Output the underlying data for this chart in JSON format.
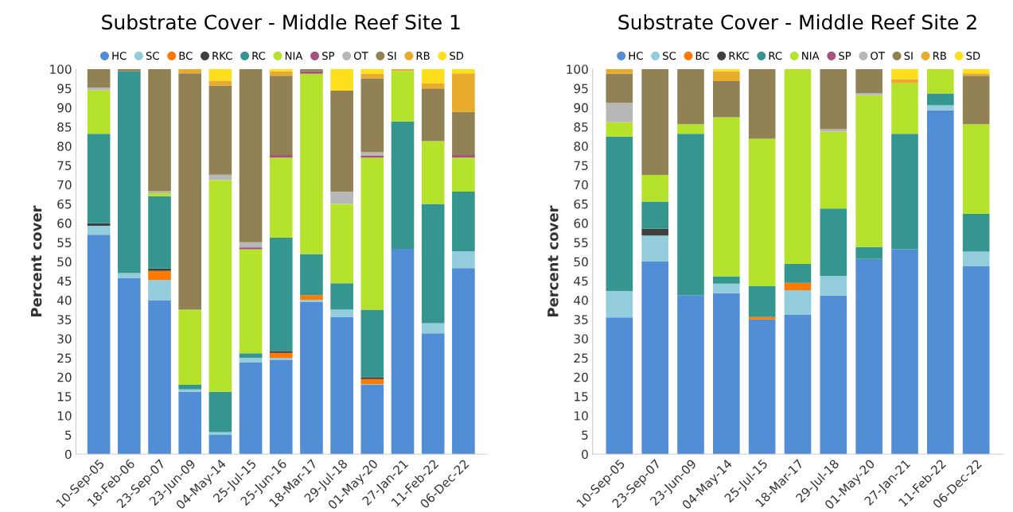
{
  "chart_data": [
    {
      "type": "bar",
      "stacked": true,
      "title": "Substrate Cover - Middle Reef Site 1",
      "ylabel": "Percent cover",
      "legend": "top",
      "grid": false,
      "ylim": [
        0,
        100
      ],
      "yticks": [
        0,
        5,
        10,
        15,
        20,
        25,
        30,
        35,
        40,
        45,
        50,
        55,
        60,
        65,
        70,
        75,
        80,
        85,
        90,
        95,
        100
      ],
      "categories": [
        "10-Sep-05",
        "18-Feb-06",
        "23-Sep-07",
        "23-Jun-09",
        "04-May-14",
        "25-Jul-15",
        "25-Jun-16",
        "18-Mar-17",
        "29-Jul-18",
        "01-May-20",
        "27-Jan-21",
        "11-Feb-22",
        "06-Dec-22"
      ],
      "series": [
        {
          "name": "HC",
          "color": "#528ed6",
          "values": [
            57,
            45.7,
            40,
            16.2,
            5,
            23.8,
            24.5,
            39.5,
            35.6,
            18,
            53.3,
            31.4,
            48.3
          ]
        },
        {
          "name": "SC",
          "color": "#93cddc",
          "values": [
            2.3,
            1.3,
            5.2,
            0.6,
            0.7,
            1.2,
            0.5,
            0.6,
            2,
            0.2,
            null,
            2.6,
            4.4
          ]
        },
        {
          "name": "BC",
          "color": "#ff7a00",
          "values": [
            null,
            null,
            2.4,
            null,
            null,
            null,
            1.3,
            1.2,
            null,
            1.3,
            null,
            null,
            null
          ]
        },
        {
          "name": "RKC",
          "color": "#404040",
          "values": [
            0.7,
            null,
            0.6,
            null,
            null,
            null,
            0.5,
            null,
            null,
            0.5,
            null,
            null,
            null
          ]
        },
        {
          "name": "RC",
          "color": "#359690",
          "values": [
            23.2,
            52.4,
            18.8,
            1.2,
            10.5,
            1.2,
            29.4,
            10.7,
            6.8,
            17.5,
            33.1,
            31,
            15.5
          ]
        },
        {
          "name": "NIA",
          "color": "#b5e32c",
          "values": [
            11.3,
            null,
            0.8,
            19.5,
            55,
            27,
            20.8,
            46.8,
            20.6,
            39.5,
            13.1,
            16.3,
            8.8
          ]
        },
        {
          "name": "SP",
          "color": "#a6527c",
          "values": [
            null,
            null,
            null,
            null,
            null,
            0.5,
            0.7,
            0.6,
            null,
            0.6,
            null,
            null,
            0.7
          ]
        },
        {
          "name": "OT",
          "color": "#b7b7b7",
          "values": [
            0.7,
            null,
            0.5,
            null,
            1.4,
            1.3,
            null,
            null,
            3.2,
            0.8,
            null,
            null,
            null
          ]
        },
        {
          "name": "SI",
          "color": "#918155",
          "values": [
            4.8,
            0.6,
            31.7,
            61.4,
            23.1,
            45,
            20.6,
            0.6,
            26.2,
            19.2,
            null,
            13.7,
            11.2
          ]
        },
        {
          "name": "RB",
          "color": "#e8ab2c",
          "values": [
            null,
            null,
            null,
            1.1,
            1.3,
            null,
            1.1,
            null,
            null,
            1.2,
            0.5,
            1.3,
            10
          ]
        },
        {
          "name": "SD",
          "color": "#ffdf1b",
          "values": [
            null,
            null,
            null,
            null,
            3,
            null,
            0.6,
            null,
            5.6,
            1.2,
            null,
            3.7,
            1.1
          ]
        }
      ]
    },
    {
      "type": "bar",
      "stacked": true,
      "title": "Substrate Cover - Middle Reef Site 2",
      "ylabel": "Percent cover",
      "legend": "top",
      "grid": false,
      "ylim": [
        0,
        100
      ],
      "yticks": [
        0,
        5,
        10,
        15,
        20,
        25,
        30,
        35,
        40,
        45,
        50,
        55,
        60,
        65,
        70,
        75,
        80,
        85,
        90,
        95,
        100
      ],
      "categories": [
        "10-Sep-05",
        "23-Sep-07",
        "23-Jun-09",
        "04-May-14",
        "25-Jul-15",
        "18-Mar-17",
        "29-Jul-18",
        "01-May-20",
        "27-Jan-21",
        "11-Feb-22",
        "06-Dec-22"
      ],
      "series": [
        {
          "name": "HC",
          "color": "#528ed6",
          "values": [
            35.5,
            50,
            41.3,
            41.8,
            35,
            36.3,
            41.2,
            50.7,
            53.2,
            89.3,
            48.8
          ]
        },
        {
          "name": "SC",
          "color": "#93cddc",
          "values": [
            6.9,
            6.8,
            null,
            2.5,
            null,
            6.3,
            5.1,
            null,
            null,
            1.3,
            3.8
          ]
        },
        {
          "name": "BC",
          "color": "#ff7a00",
          "values": [
            null,
            null,
            null,
            null,
            0.6,
            1.9,
            null,
            null,
            null,
            null,
            null
          ]
        },
        {
          "name": "RKC",
          "color": "#404040",
          "values": [
            null,
            1.8,
            null,
            null,
            null,
            null,
            null,
            null,
            null,
            null,
            null
          ]
        },
        {
          "name": "RC",
          "color": "#359690",
          "values": [
            40.1,
            7,
            41.9,
            1.9,
            8,
            4.9,
            17.5,
            3.1,
            30,
            3.1,
            9.8
          ]
        },
        {
          "name": "NIA",
          "color": "#b5e32c",
          "values": [
            3.7,
            6.9,
            2.5,
            41.3,
            38.3,
            50.6,
            20,
            39.4,
            13.1,
            6.3,
            23.3
          ]
        },
        {
          "name": "SP",
          "color": "#a6527c",
          "values": [
            null,
            null,
            null,
            null,
            null,
            null,
            null,
            null,
            null,
            null,
            null
          ]
        },
        {
          "name": "OT",
          "color": "#b7b7b7",
          "values": [
            5,
            null,
            null,
            null,
            null,
            null,
            0.6,
            0.6,
            null,
            null,
            null
          ]
        },
        {
          "name": "SI",
          "color": "#918155",
          "values": [
            7.6,
            27.5,
            14.3,
            9.4,
            18.1,
            null,
            15.6,
            6.2,
            null,
            null,
            12.6
          ]
        },
        {
          "name": "RB",
          "color": "#e8ab2c",
          "values": [
            1.2,
            null,
            null,
            2.5,
            null,
            null,
            null,
            null,
            1.1,
            null,
            0.6
          ]
        },
        {
          "name": "SD",
          "color": "#ffdf1b",
          "values": [
            null,
            null,
            null,
            0.6,
            null,
            null,
            null,
            null,
            2.6,
            null,
            1.1
          ]
        }
      ]
    }
  ]
}
